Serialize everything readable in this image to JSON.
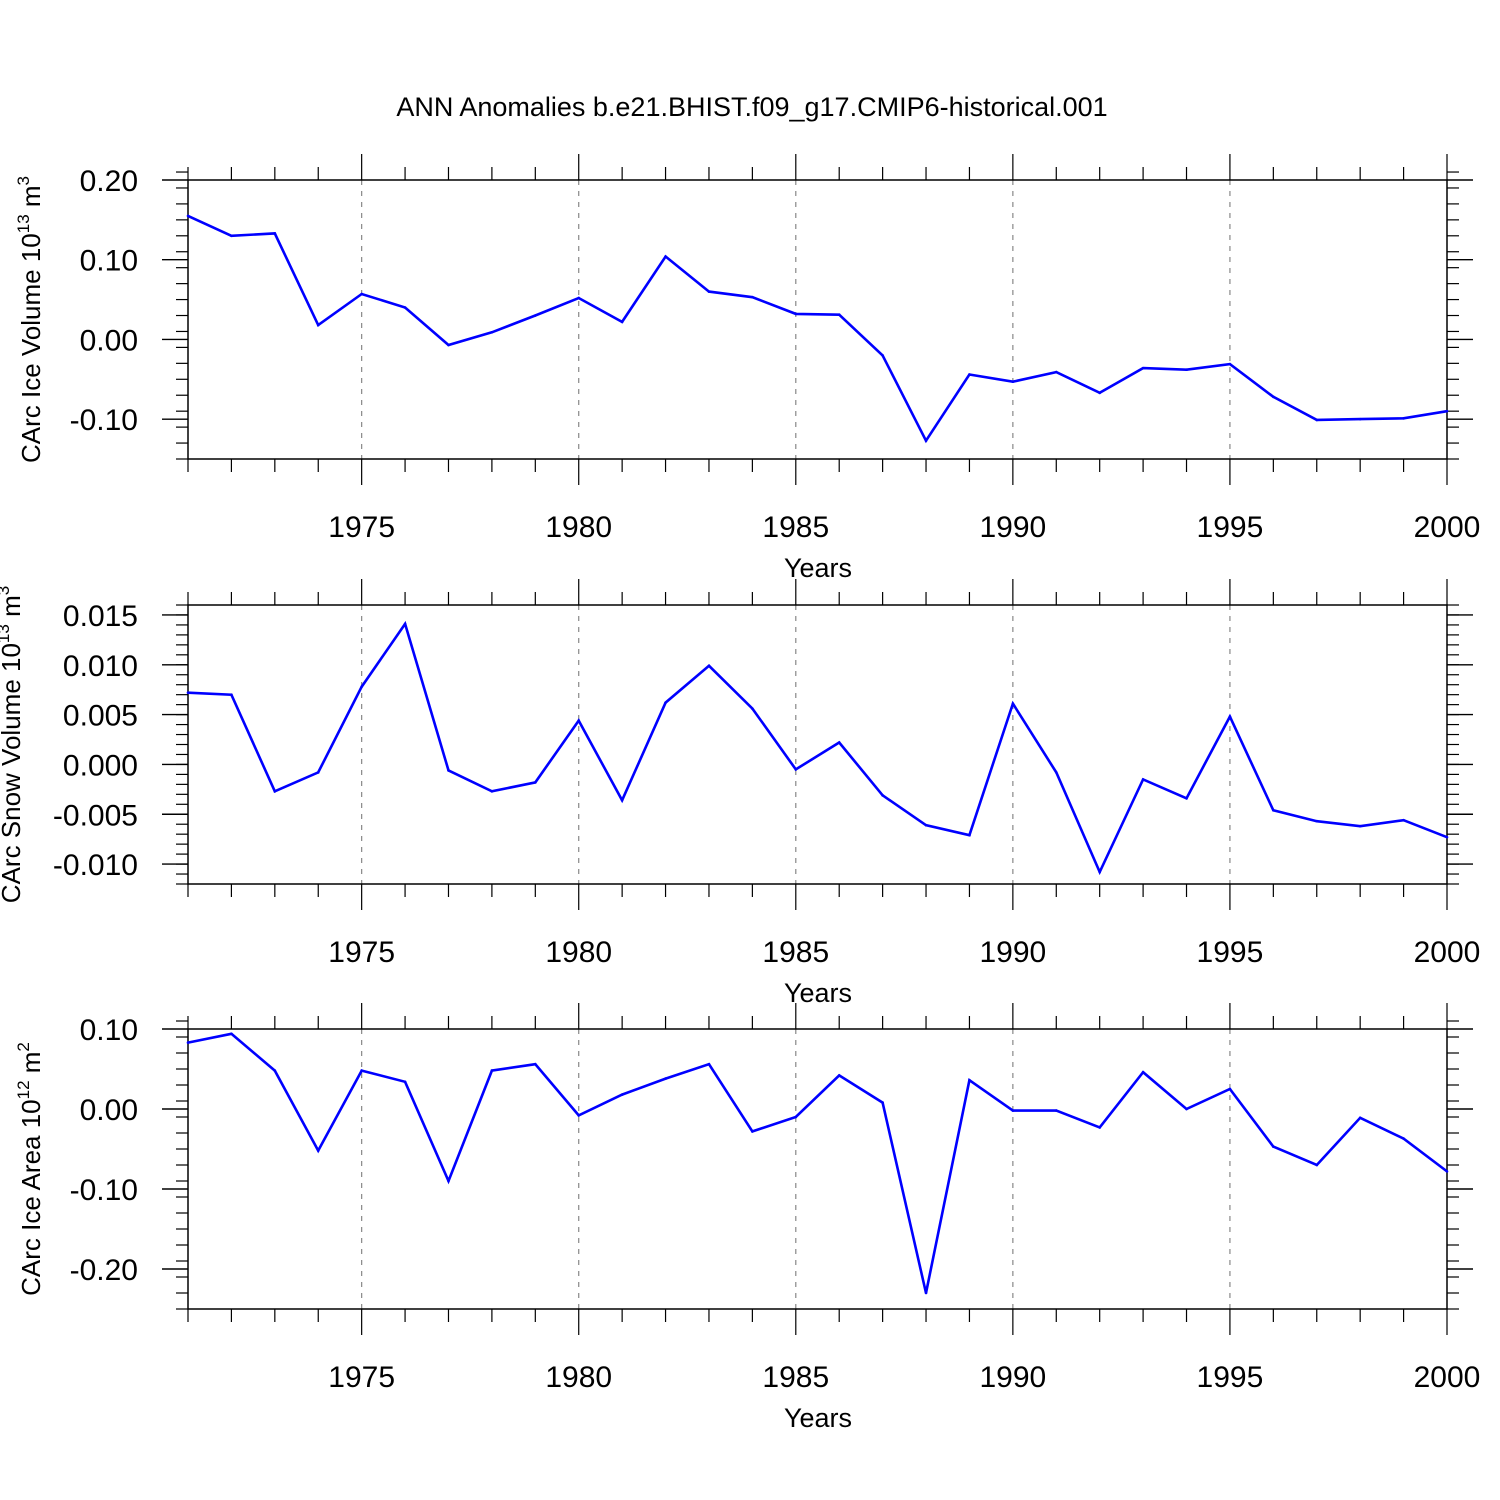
{
  "figure_title": "ANN Anomalies b.e21.BHIST.f09_g17.CMIP6-historical.001",
  "colors": {
    "line": "#0000ff",
    "axis": "#000000",
    "grid": "#888888"
  },
  "chart_data": [
    {
      "type": "line",
      "ylabel_main": "CArc Ice Volume 10",
      "ylabel_exp": "13",
      "ylabel_unit": "m",
      "ylabel_unit_exp": "3",
      "xlabel": "Years",
      "xlim": [
        1971,
        2000
      ],
      "ylim": [
        -0.15,
        0.2
      ],
      "yticks": [
        0.2,
        0.1,
        0.0,
        -0.1
      ],
      "ytick_labels": [
        "0.20",
        "0.10",
        "0.00",
        "-0.10"
      ],
      "yminor_step": 0.02,
      "xticks": [
        1975,
        1980,
        1985,
        1990,
        1995,
        2000
      ],
      "xtick_labels": [
        "1975",
        "1980",
        "1985",
        "1990",
        "1995",
        "2000"
      ],
      "grid_years": [
        1975,
        1980,
        1985,
        1990,
        1995
      ],
      "x": [
        1971,
        1972,
        1973,
        1974,
        1975,
        1976,
        1977,
        1978,
        1979,
        1980,
        1981,
        1982,
        1983,
        1984,
        1985,
        1986,
        1987,
        1988,
        1989,
        1990,
        1991,
        1992,
        1993,
        1994,
        1995,
        1996,
        1997,
        1998,
        1999,
        2000
      ],
      "values": [
        0.155,
        0.13,
        0.133,
        0.018,
        0.057,
        0.04,
        -0.007,
        0.009,
        0.03,
        0.052,
        0.022,
        0.104,
        0.06,
        0.053,
        0.032,
        0.031,
        -0.02,
        -0.127,
        -0.044,
        -0.053,
        -0.041,
        -0.067,
        -0.036,
        -0.038,
        -0.031,
        -0.072,
        -0.101,
        -0.1,
        -0.099,
        -0.09
      ]
    },
    {
      "type": "line",
      "ylabel_main": "CArc Snow Volume 10",
      "ylabel_exp": "13",
      "ylabel_unit": "m",
      "ylabel_unit_exp": "3",
      "xlabel": "Years",
      "xlim": [
        1971,
        2000
      ],
      "ylim": [
        -0.012,
        0.016
      ],
      "yticks": [
        0.015,
        0.01,
        0.005,
        0.0,
        -0.005,
        -0.01
      ],
      "ytick_labels": [
        "0.015",
        "0.010",
        "0.005",
        "0.000",
        "-0.005",
        "-0.010"
      ],
      "yminor_step": 0.001,
      "xticks": [
        1975,
        1980,
        1985,
        1990,
        1995,
        2000
      ],
      "xtick_labels": [
        "1975",
        "1980",
        "1985",
        "1990",
        "1995",
        "2000"
      ],
      "grid_years": [
        1975,
        1980,
        1985,
        1990,
        1995
      ],
      "x": [
        1971,
        1972,
        1973,
        1974,
        1975,
        1976,
        1977,
        1978,
        1979,
        1980,
        1981,
        1982,
        1983,
        1984,
        1985,
        1986,
        1987,
        1988,
        1989,
        1990,
        1991,
        1992,
        1993,
        1994,
        1995,
        1996,
        1997,
        1998,
        1999,
        2000
      ],
      "values": [
        0.0072,
        0.007,
        -0.0027,
        -0.0008,
        0.0078,
        0.0141,
        -0.0006,
        -0.0027,
        -0.0018,
        0.0044,
        -0.0036,
        0.0062,
        0.0099,
        0.0056,
        -0.0005,
        0.0022,
        -0.0031,
        -0.0061,
        -0.0071,
        0.0061,
        -0.0008,
        -0.0108,
        -0.0015,
        -0.0034,
        0.0048,
        -0.0046,
        -0.0057,
        -0.0062,
        -0.0056,
        -0.0073
      ]
    },
    {
      "type": "line",
      "ylabel_main": "CArc Ice Area 10",
      "ylabel_exp": "12",
      "ylabel_unit": "m",
      "ylabel_unit_exp": "2",
      "xlabel": "Years",
      "xlim": [
        1971,
        2000
      ],
      "ylim": [
        -0.25,
        0.1
      ],
      "yticks": [
        0.1,
        0.0,
        -0.1,
        -0.2
      ],
      "ytick_labels": [
        "0.10",
        "0.00",
        "-0.10",
        "-0.20"
      ],
      "yminor_step": 0.02,
      "xticks": [
        1975,
        1980,
        1985,
        1990,
        1995,
        2000
      ],
      "xtick_labels": [
        "1975",
        "1980",
        "1985",
        "1990",
        "1995",
        "2000"
      ],
      "grid_years": [
        1975,
        1980,
        1985,
        1990,
        1995
      ],
      "x": [
        1971,
        1972,
        1973,
        1974,
        1975,
        1976,
        1977,
        1978,
        1979,
        1980,
        1981,
        1982,
        1983,
        1984,
        1985,
        1986,
        1987,
        1988,
        1989,
        1990,
        1991,
        1992,
        1993,
        1994,
        1995,
        1996,
        1997,
        1998,
        1999,
        2000
      ],
      "values": [
        0.083,
        0.094,
        0.048,
        -0.052,
        0.048,
        0.034,
        -0.09,
        0.048,
        0.056,
        -0.008,
        0.018,
        0.038,
        0.056,
        -0.028,
        -0.01,
        0.042,
        0.008,
        -0.23,
        0.036,
        -0.002,
        -0.002,
        -0.023,
        0.046,
        0.0,
        0.025,
        -0.047,
        -0.07,
        -0.011,
        -0.037,
        -0.078
      ]
    }
  ]
}
